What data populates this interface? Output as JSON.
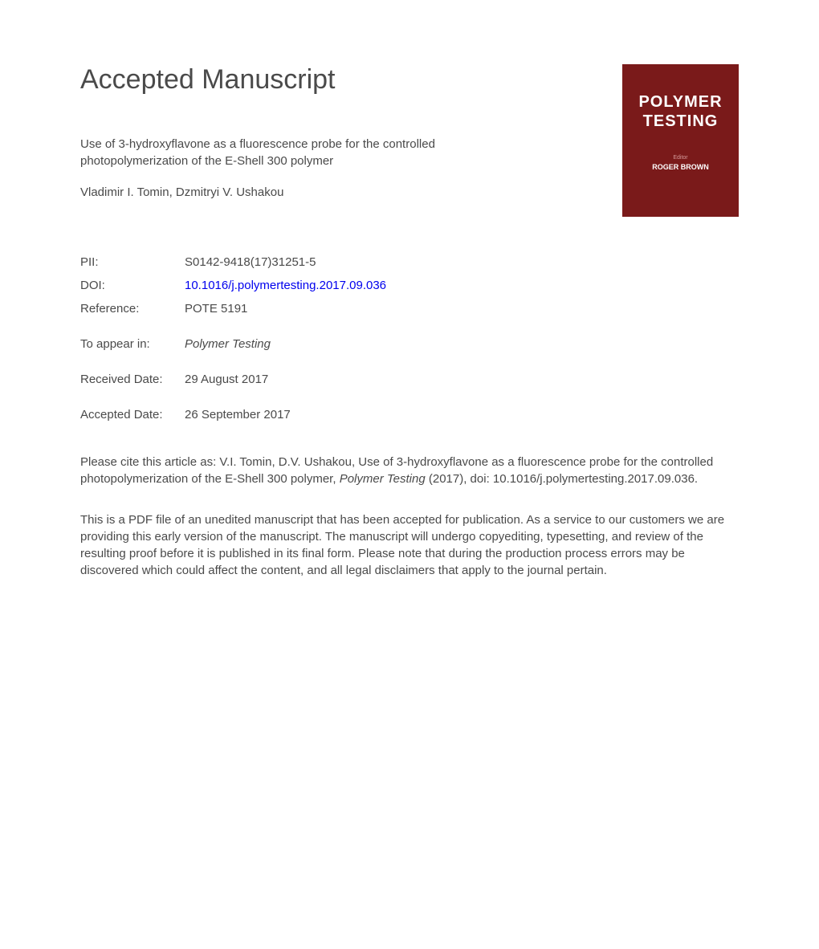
{
  "heading": "Accepted Manuscript",
  "title": "Use of 3-hydroxyflavone as a fluorescence probe for the controlled photopolymerization of the E-Shell 300 polymer",
  "authors": "Vladimir I. Tomin, Dzmitryi V. Ushakou",
  "journal_cover": {
    "publisher": "",
    "title_line1": "POLYMER",
    "title_line2": "TESTING",
    "editor_label": "Editor",
    "editor_name": "ROGER BROWN",
    "background_color": "#7a1a1a",
    "text_color": "#ffffff"
  },
  "metadata": {
    "pii_label": "PII:",
    "pii_value": "S0142-9418(17)31251-5",
    "doi_label": "DOI:",
    "doi_value": "10.1016/j.polymertesting.2017.09.036",
    "reference_label": "Reference:",
    "reference_value": "POTE 5191",
    "appear_label": "To appear in:",
    "appear_value": "Polymer Testing",
    "received_label": "Received Date:",
    "received_value": "29 August 2017",
    "accepted_label": "Accepted Date:",
    "accepted_value": "26 September 2017"
  },
  "citation": {
    "prefix": "Please cite this article as: V.I. Tomin, D.V. Ushakou, Use of 3-hydroxyflavone as a fluorescence probe for the controlled photopolymerization of the E-Shell 300 polymer, ",
    "journal": "Polymer Testing",
    "suffix": " (2017), doi: 10.1016/j.polymertesting.2017.09.036."
  },
  "disclaimer": "This is a PDF file of an unedited manuscript that has been accepted for publication. As a service to our customers we are providing this early version of the manuscript. The manuscript will undergo copyediting, typesetting, and review of the resulting proof before it is published in its final form. Please note that during the production process errors may be discovered which could affect the content, and all legal disclaimers that apply to the journal pertain.",
  "colors": {
    "text": "#4a4a4a",
    "link": "#0000ee",
    "background": "#ffffff"
  },
  "fonts": {
    "heading_size": 34,
    "body_size": 15
  }
}
